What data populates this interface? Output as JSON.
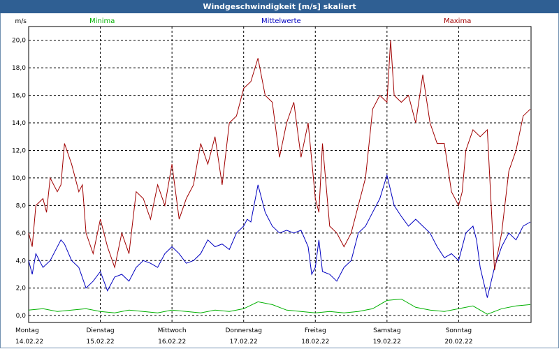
{
  "window": {
    "title": "Windgeschwindigkeit [m/s] skaliert"
  },
  "colors": {
    "min": "#00b000",
    "mean": "#0000c0",
    "max": "#a00000",
    "title_bg": "#2f5f93"
  },
  "chart_data": {
    "type": "line",
    "title": "Windgeschwindigkeit [m/s] skaliert",
    "ylabel": "m/s",
    "ylim": [
      -0.5,
      21
    ],
    "yticks": [
      "0,0",
      "2,0",
      "4,0",
      "6,0",
      "8,0",
      "10,0",
      "12,0",
      "14,0",
      "16,0",
      "18,0",
      "20,0"
    ],
    "days": [
      {
        "name": "Montag",
        "date": "14.02.22"
      },
      {
        "name": "Dienstag",
        "date": "15.02.22"
      },
      {
        "name": "Mittwoch",
        "date": "16.02.22"
      },
      {
        "name": "Donnerstag",
        "date": "17.02.22"
      },
      {
        "name": "Freitag",
        "date": "18.02.22"
      },
      {
        "name": "Samstag",
        "date": "19.02.22"
      },
      {
        "name": "Sonntag",
        "date": "20.02.22"
      }
    ],
    "xlim": [
      0,
      7.01
    ],
    "grid": true,
    "series": [
      {
        "name": "Minima",
        "x": [
          0.0,
          0.2,
          0.4,
          0.6,
          0.8,
          1.0,
          1.2,
          1.4,
          1.6,
          1.8,
          2.0,
          2.2,
          2.4,
          2.6,
          2.8,
          3.0,
          3.2,
          3.4,
          3.6,
          3.8,
          4.0,
          4.2,
          4.4,
          4.6,
          4.8,
          5.0,
          5.2,
          5.4,
          5.6,
          5.8,
          6.0,
          6.2,
          6.4,
          6.6,
          6.8,
          7.0
        ],
        "values": [
          0.4,
          0.5,
          0.3,
          0.4,
          0.5,
          0.3,
          0.2,
          0.4,
          0.3,
          0.2,
          0.4,
          0.3,
          0.2,
          0.4,
          0.3,
          0.5,
          1.0,
          0.8,
          0.4,
          0.3,
          0.2,
          0.3,
          0.2,
          0.3,
          0.5,
          1.1,
          1.2,
          0.6,
          0.4,
          0.3,
          0.5,
          0.7,
          0.1,
          0.5,
          0.7,
          0.8
        ]
      },
      {
        "name": "Mittelwerte",
        "x": [
          0.0,
          0.05,
          0.1,
          0.2,
          0.3,
          0.45,
          0.5,
          0.6,
          0.7,
          0.8,
          0.9,
          1.0,
          1.1,
          1.2,
          1.3,
          1.4,
          1.5,
          1.6,
          1.7,
          1.8,
          1.9,
          2.0,
          2.1,
          2.2,
          2.3,
          2.4,
          2.5,
          2.6,
          2.7,
          2.8,
          2.9,
          3.0,
          3.05,
          3.1,
          3.2,
          3.3,
          3.4,
          3.5,
          3.6,
          3.7,
          3.8,
          3.9,
          3.95,
          4.0,
          4.05,
          4.1,
          4.2,
          4.3,
          4.4,
          4.5,
          4.6,
          4.7,
          4.8,
          4.9,
          5.0,
          5.1,
          5.2,
          5.3,
          5.4,
          5.5,
          5.6,
          5.7,
          5.8,
          5.9,
          6.0,
          6.1,
          6.2,
          6.25,
          6.3,
          6.4,
          6.5,
          6.6,
          6.7,
          6.8,
          6.9,
          7.0
        ],
        "values": [
          4.0,
          3.0,
          4.5,
          3.5,
          4.0,
          5.5,
          5.2,
          4.0,
          3.5,
          2.0,
          2.5,
          3.2,
          1.8,
          2.8,
          3.0,
          2.5,
          3.5,
          4.0,
          3.8,
          3.5,
          4.5,
          5.0,
          4.5,
          3.8,
          4.0,
          4.5,
          5.5,
          5.0,
          5.2,
          4.8,
          6.0,
          6.5,
          7.0,
          6.8,
          9.5,
          7.5,
          6.5,
          6.0,
          6.2,
          6.0,
          6.2,
          5.0,
          3.0,
          3.5,
          5.5,
          3.2,
          3.0,
          2.5,
          3.5,
          4.0,
          6.0,
          6.5,
          7.5,
          8.5,
          10.2,
          8.0,
          7.2,
          6.5,
          7.0,
          6.5,
          6.0,
          5.0,
          4.2,
          4.5,
          4.0,
          6.0,
          6.5,
          5.5,
          3.5,
          1.3,
          3.5,
          5.0,
          6.0,
          5.5,
          6.5,
          6.8
        ]
      },
      {
        "name": "Maxima",
        "x": [
          0.0,
          0.05,
          0.1,
          0.2,
          0.25,
          0.3,
          0.4,
          0.45,
          0.5,
          0.6,
          0.7,
          0.75,
          0.8,
          0.9,
          1.0,
          1.1,
          1.2,
          1.3,
          1.4,
          1.5,
          1.6,
          1.7,
          1.8,
          1.9,
          2.0,
          2.1,
          2.2,
          2.3,
          2.4,
          2.5,
          2.6,
          2.7,
          2.8,
          2.9,
          3.0,
          3.1,
          3.2,
          3.3,
          3.4,
          3.5,
          3.6,
          3.7,
          3.8,
          3.9,
          4.0,
          4.05,
          4.1,
          4.2,
          4.3,
          4.4,
          4.5,
          4.6,
          4.7,
          4.8,
          4.9,
          5.0,
          5.05,
          5.1,
          5.2,
          5.3,
          5.4,
          5.5,
          5.6,
          5.7,
          5.8,
          5.9,
          6.0,
          6.05,
          6.1,
          6.2,
          6.3,
          6.4,
          6.5,
          6.6,
          6.7,
          6.8,
          6.9,
          7.0
        ],
        "values": [
          6.0,
          5.0,
          8.0,
          8.5,
          7.5,
          10.0,
          9.0,
          9.5,
          12.5,
          11.0,
          9.0,
          9.5,
          6.0,
          4.5,
          7.0,
          5.0,
          3.5,
          6.0,
          4.5,
          9.0,
          8.5,
          7.0,
          9.5,
          8.0,
          11.0,
          7.0,
          8.5,
          9.5,
          12.5,
          11.0,
          13.0,
          9.5,
          14.0,
          14.5,
          16.5,
          17.0,
          18.7,
          16.0,
          15.5,
          11.5,
          14.0,
          15.5,
          11.5,
          14.0,
          8.5,
          7.5,
          12.5,
          6.5,
          6.0,
          5.0,
          6.0,
          8.0,
          10.0,
          15.0,
          16.0,
          15.5,
          20.0,
          16.0,
          15.5,
          16.0,
          14.0,
          17.5,
          14.0,
          12.5,
          12.5,
          9.0,
          8.0,
          9.0,
          12.0,
          13.5,
          13.0,
          13.5,
          3.3,
          6.0,
          10.5,
          12.0,
          14.5,
          15.0
        ]
      }
    ]
  }
}
